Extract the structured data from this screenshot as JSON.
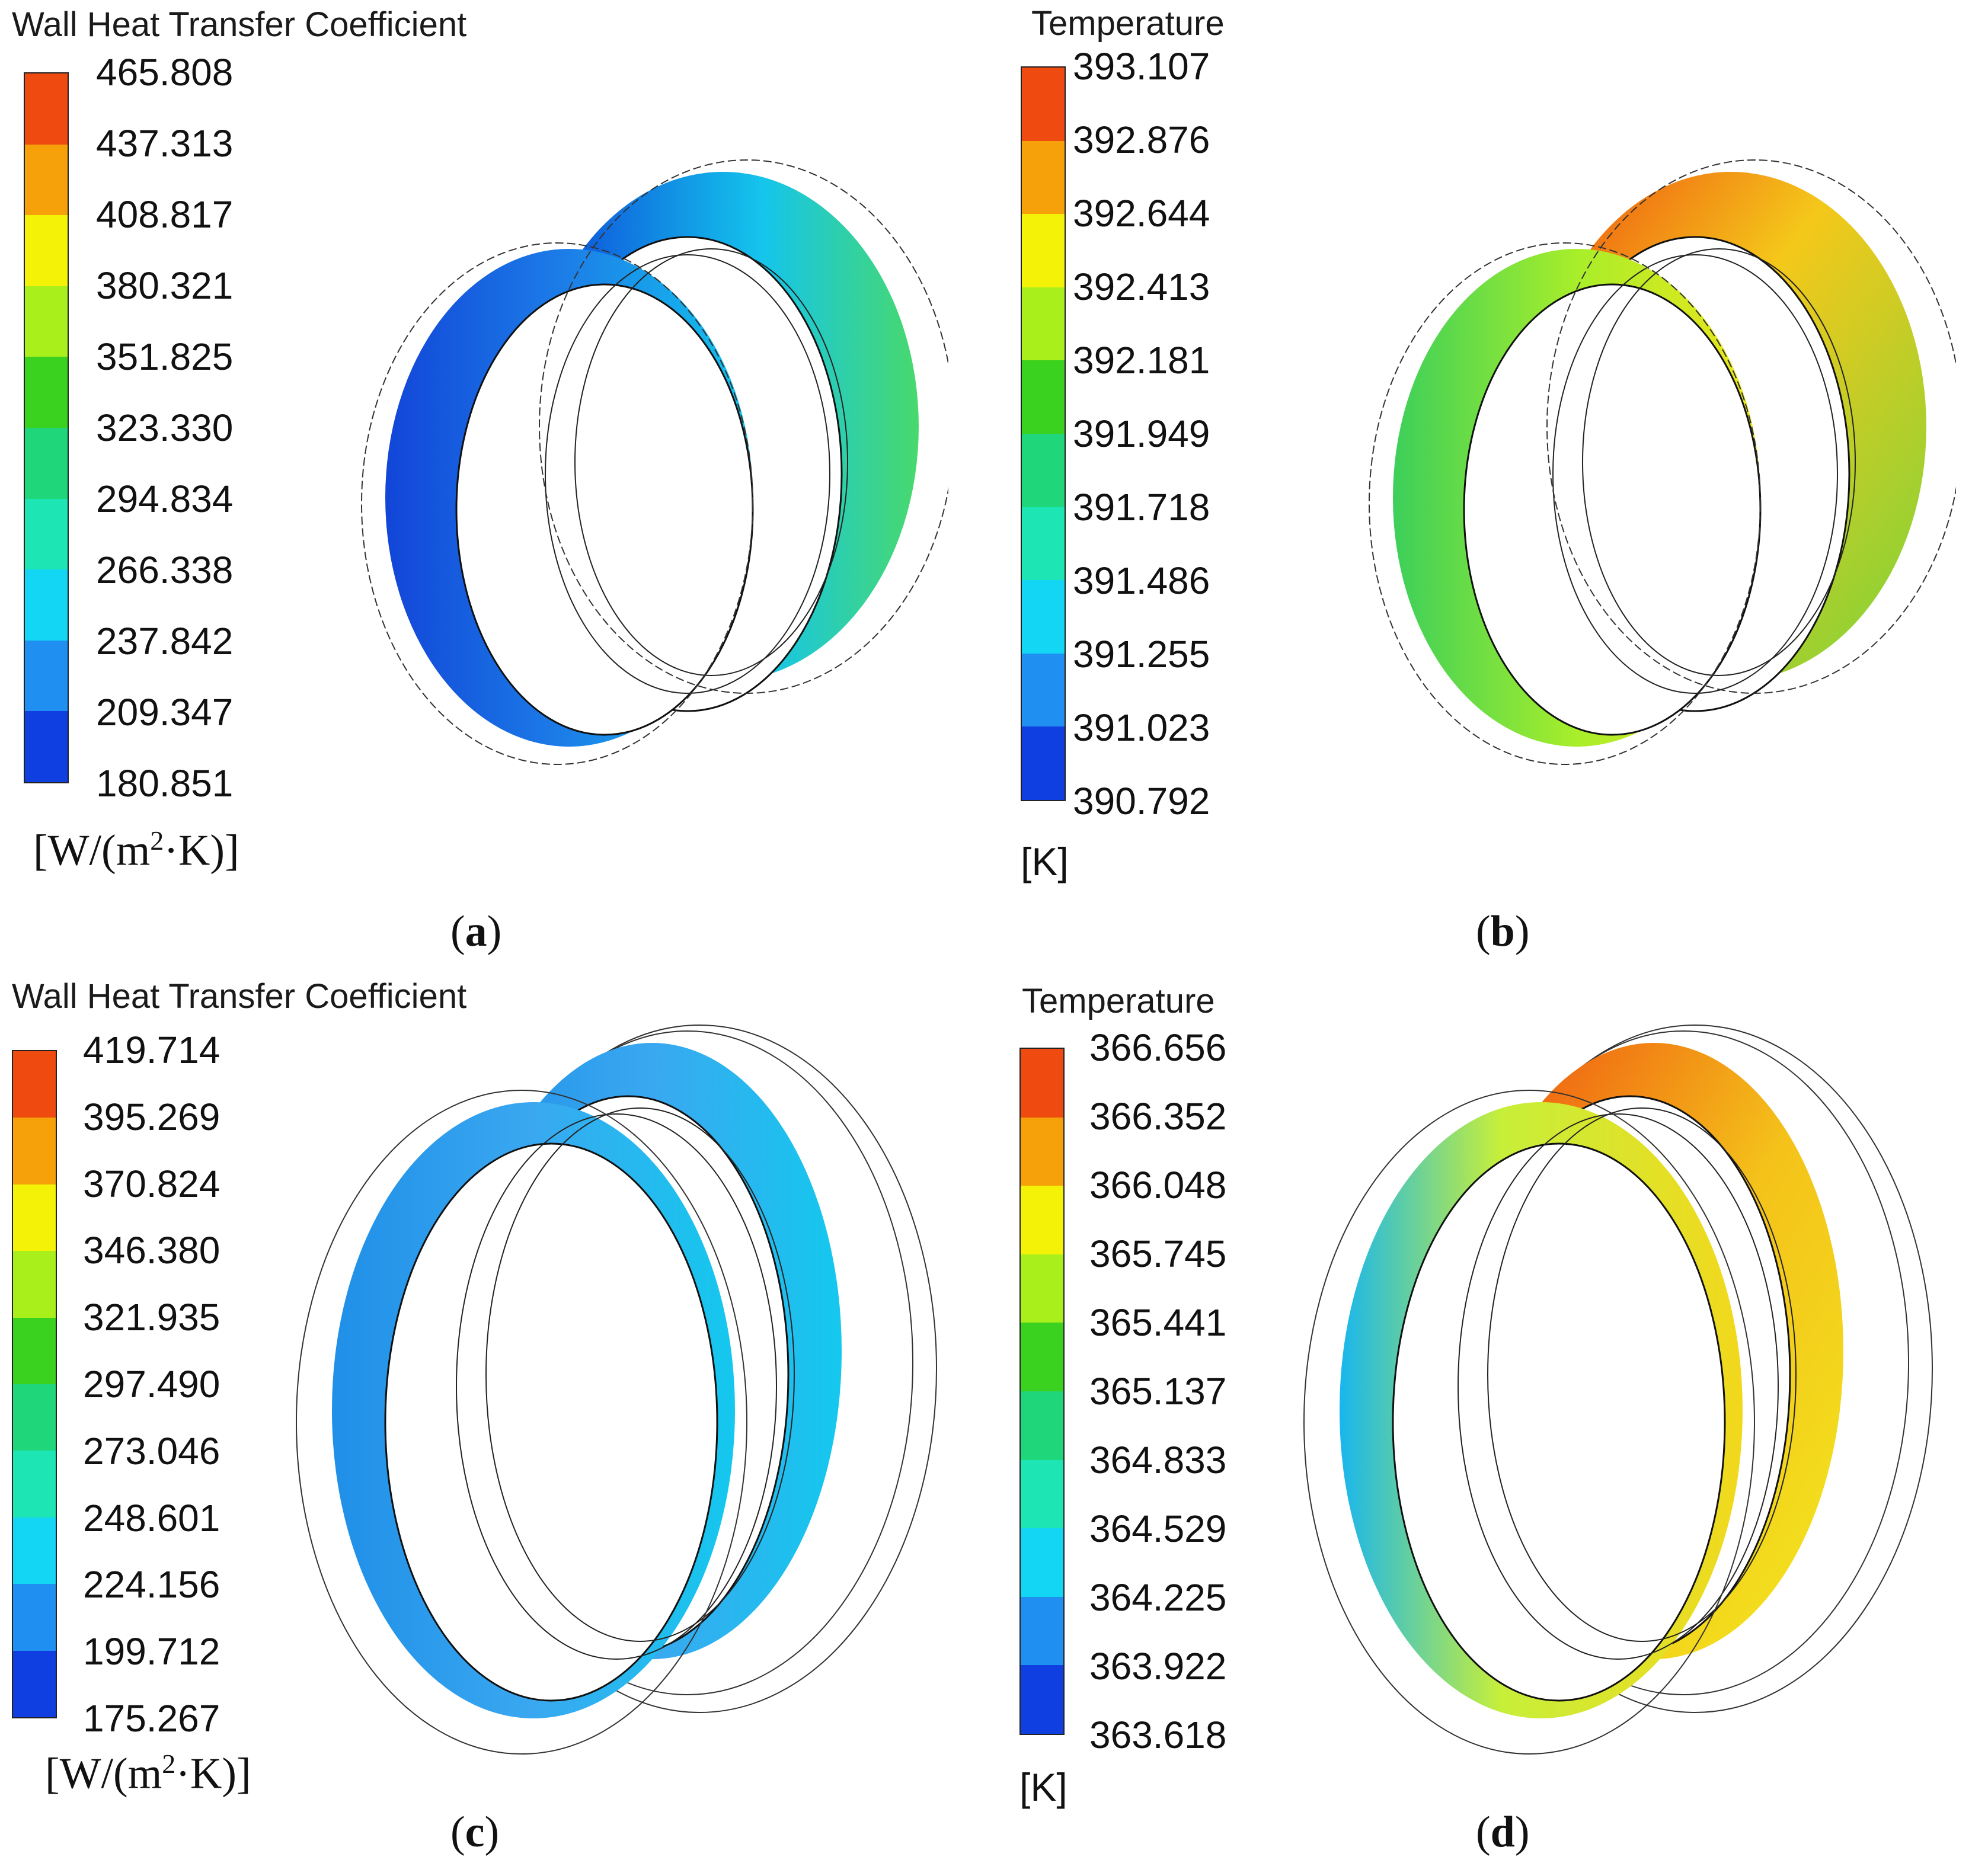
{
  "colormap": [
    "#0f3fe0",
    "#1f8ff2",
    "#12d6f4",
    "#1de5b4",
    "#1fd67a",
    "#3bd11f",
    "#a9ef1c",
    "#f4f207",
    "#f6a10a",
    "#ef4a10"
  ],
  "panels": [
    {
      "id": "a",
      "legend_title": "Wall Heat Transfer Coefficient",
      "ticks": [
        "465.808",
        "437.313",
        "408.817",
        "380.321",
        "351.825",
        "323.330",
        "294.834",
        "266.338",
        "237.842",
        "209.347",
        "180.851"
      ],
      "unit_parts": [
        "[W/(m",
        "2",
        "·K)]"
      ],
      "caption_letter": "a",
      "field_kind": "htc"
    },
    {
      "id": "b",
      "legend_title": "Temperature",
      "ticks": [
        "393.107",
        "392.876",
        "392.644",
        "392.413",
        "392.181",
        "391.949",
        "391.718",
        "391.486",
        "391.255",
        "391.023",
        "390.792"
      ],
      "unit": "[K]",
      "caption_letter": "b",
      "field_kind": "temp"
    },
    {
      "id": "c",
      "legend_title": "Wall Heat Transfer Coefficient",
      "ticks": [
        "419.714",
        "395.269",
        "370.824",
        "346.380",
        "321.935",
        "297.490",
        "273.046",
        "248.601",
        "224.156",
        "199.712",
        "175.267"
      ],
      "unit_parts": [
        "[W/(m",
        "2",
        "·K)]"
      ],
      "caption_letter": "c",
      "field_kind": "htc"
    },
    {
      "id": "d",
      "legend_title": "Temperature",
      "ticks": [
        "366.656",
        "366.352",
        "366.048",
        "365.745",
        "365.441",
        "365.137",
        "364.833",
        "364.529",
        "364.225",
        "363.922",
        "363.618"
      ],
      "unit": "[K]",
      "caption_letter": "d",
      "field_kind": "temp"
    }
  ]
}
